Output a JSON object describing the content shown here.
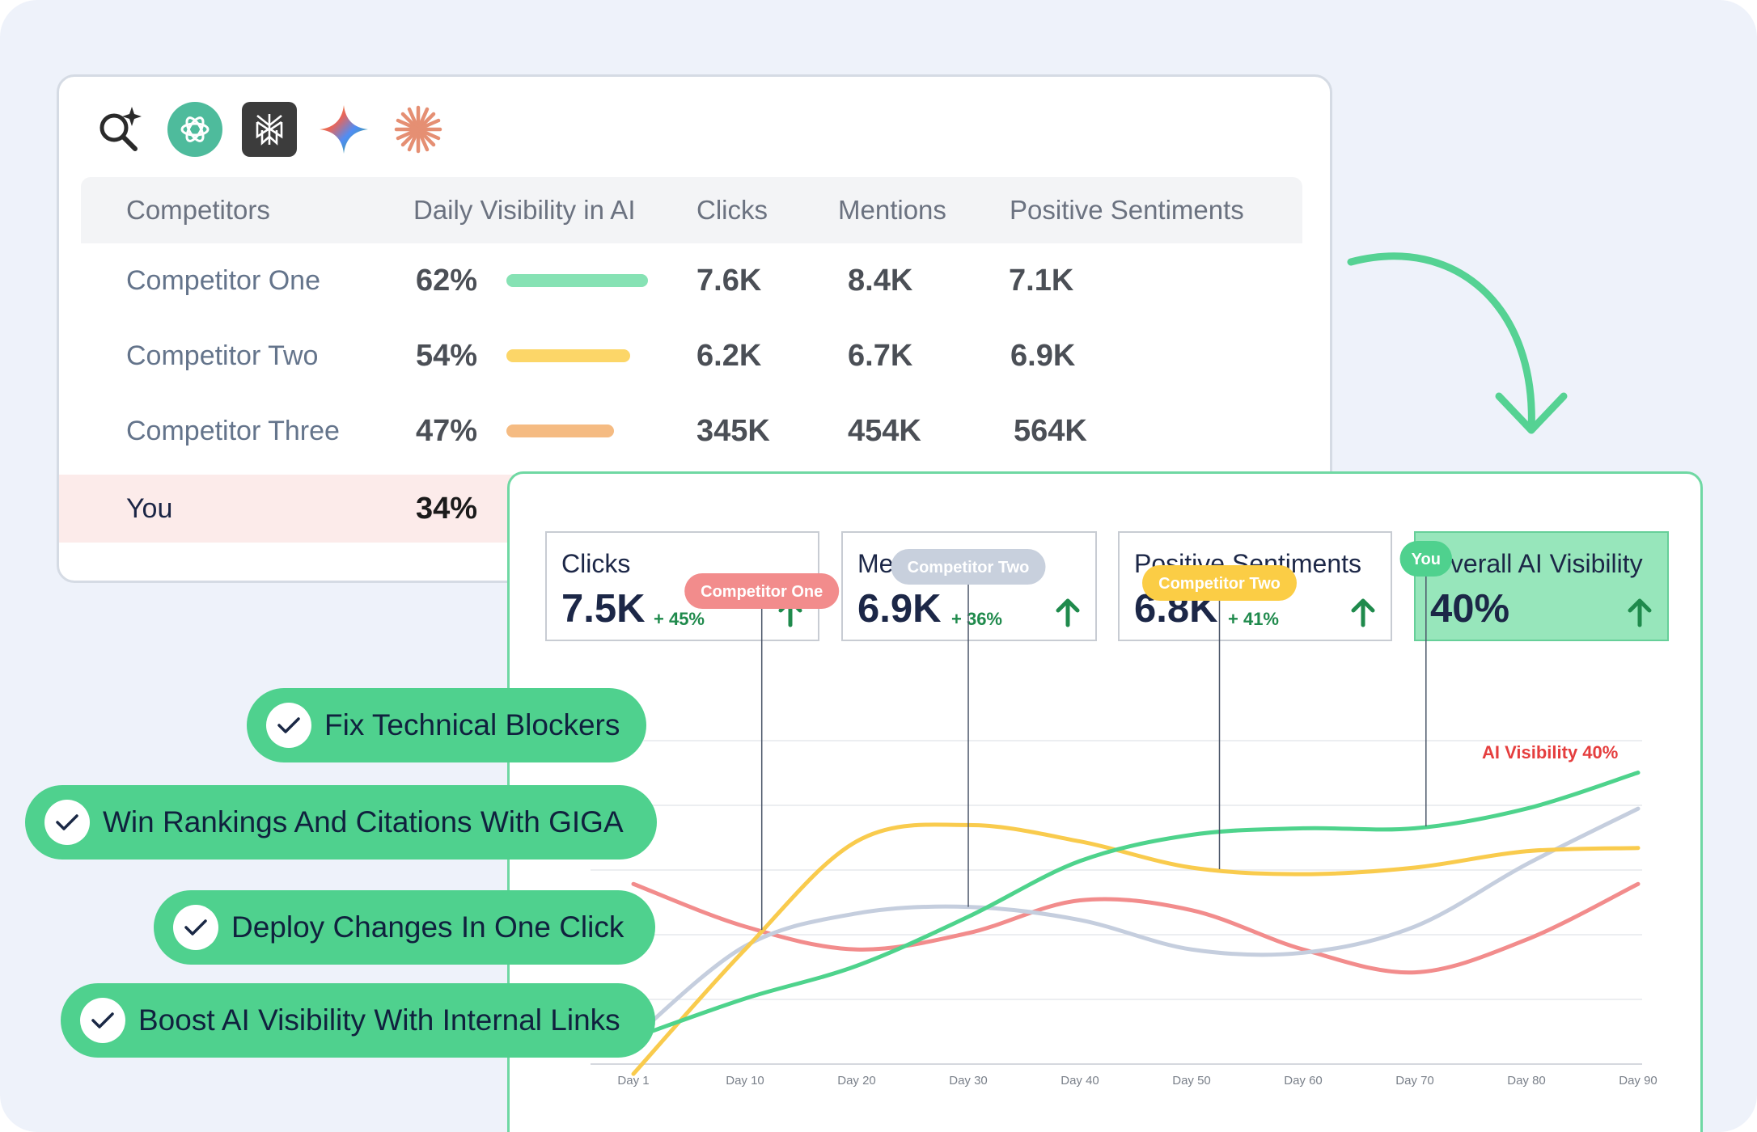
{
  "ai_engines": [
    "ai-search-icon",
    "chatgpt-icon",
    "perplexity-icon",
    "gemini-icon",
    "claude-icon"
  ],
  "table": {
    "headers": {
      "competitors": "Competitors",
      "visibility": "Daily Visibility in AI",
      "clicks": "Clicks",
      "mentions": "Mentions",
      "sentiments": "Positive Sentiments"
    },
    "rows": [
      {
        "name": "Competitor One",
        "visibility": "62%",
        "visibility_value": 62,
        "clicks": "7.6K",
        "mentions": "8.4K",
        "sentiments": "7.1K",
        "bar_color": "#86e2b4"
      },
      {
        "name": "Competitor Two",
        "visibility": "54%",
        "visibility_value": 54,
        "clicks": "6.2K",
        "mentions": "6.7K",
        "sentiments": "6.9K",
        "bar_color": "#fcd668"
      },
      {
        "name": "Competitor Three",
        "visibility": "47%",
        "visibility_value": 47,
        "clicks": "345K",
        "mentions": "454K",
        "sentiments": "564K",
        "bar_color": "#f5bb82"
      },
      {
        "name": "You",
        "visibility": "34%",
        "visibility_value": 34
      }
    ]
  },
  "metrics": {
    "clicks": {
      "label": "Clicks",
      "value": "7.5K",
      "delta": "+ 45%"
    },
    "mentions": {
      "label": "Mentions",
      "value": "6.9K",
      "delta": "+ 36%"
    },
    "sentiments": {
      "label": "Positive Sentiments",
      "value": "6.8K",
      "delta": "+ 41%"
    },
    "overall": {
      "label": "Overall AI Visibility",
      "value": "40%"
    }
  },
  "chart_data": {
    "type": "line",
    "title": "",
    "xlabel": "",
    "ylabel": "",
    "categories": [
      "Day 1",
      "Day 10",
      "Day 20",
      "Day 30",
      "Day 40",
      "Day 50",
      "Day 60",
      "Day 70",
      "Day 80",
      "Day 90"
    ],
    "ylim": [
      0,
      100
    ],
    "series": [
      {
        "name": "Competitor One",
        "color": "#f28c8c",
        "values": [
          55,
          42,
          35,
          40,
          50,
          47,
          35,
          28,
          38,
          55
        ]
      },
      {
        "name": "Competitor Two (grey)",
        "color": "#c5cede",
        "values": [
          8,
          36,
          46,
          48,
          44,
          35,
          34,
          42,
          61,
          78
        ]
      },
      {
        "name": "Competitor Two",
        "color": "#f9cb4d",
        "values": [
          -3,
          35,
          68,
          73,
          68,
          60,
          58,
          60,
          65,
          66
        ]
      },
      {
        "name": "You",
        "color": "#4ed38c",
        "values": [
          8,
          20,
          30,
          45,
          62,
          70,
          72,
          72,
          78,
          89
        ]
      }
    ],
    "annotations": [
      {
        "label": "Competitor One",
        "color": "#f28c8c",
        "text_color": "#ffffff"
      },
      {
        "label": "Competitor Two",
        "color": "#c8d0dd",
        "text_color": "#ffffff"
      },
      {
        "label": "Competitor Two",
        "color": "#fbcd45",
        "text_color": "#ffffff"
      },
      {
        "label": "You",
        "color": "#4fd18e",
        "text_color": "#ffffff"
      }
    ],
    "callout": "AI Visibility 40%"
  },
  "features": [
    "Fix Technical Blockers",
    "Win Rankings And Citations With GIGA",
    "Deploy Changes In One Click",
    "Boost AI Visibility With Internal Links"
  ]
}
